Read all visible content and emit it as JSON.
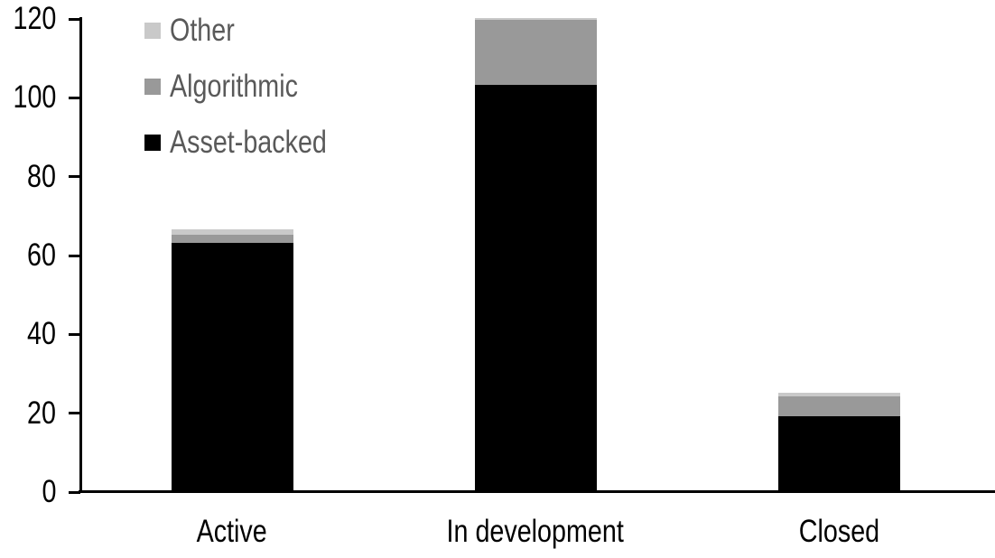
{
  "chart_data": {
    "type": "bar",
    "stacked": true,
    "title": "",
    "xlabel": "",
    "ylabel": "",
    "categories": [
      "Active",
      "In development",
      "Closed"
    ],
    "series": [
      {
        "name": "Asset-backed",
        "color": "#000000",
        "values": [
          63,
          103,
          19
        ]
      },
      {
        "name": "Algorithmic",
        "color": "#999999",
        "values": [
          2,
          16.5,
          5
        ]
      },
      {
        "name": "Other",
        "color": "#C9C9C9",
        "values": [
          1.5,
          0.5,
          1
        ]
      }
    ],
    "ylim": [
      0,
      120
    ],
    "yticks": [
      0,
      20,
      40,
      60,
      80,
      100,
      120
    ],
    "grid": false,
    "legend_position": "top-left",
    "axis_color": "#000000"
  },
  "legend": {
    "text_color": "#595959",
    "items": [
      {
        "label": "Other",
        "color": "#C9C9C9"
      },
      {
        "label": "Algorithmic",
        "color": "#999999"
      },
      {
        "label": "Asset-backed",
        "color": "#000000"
      }
    ]
  }
}
